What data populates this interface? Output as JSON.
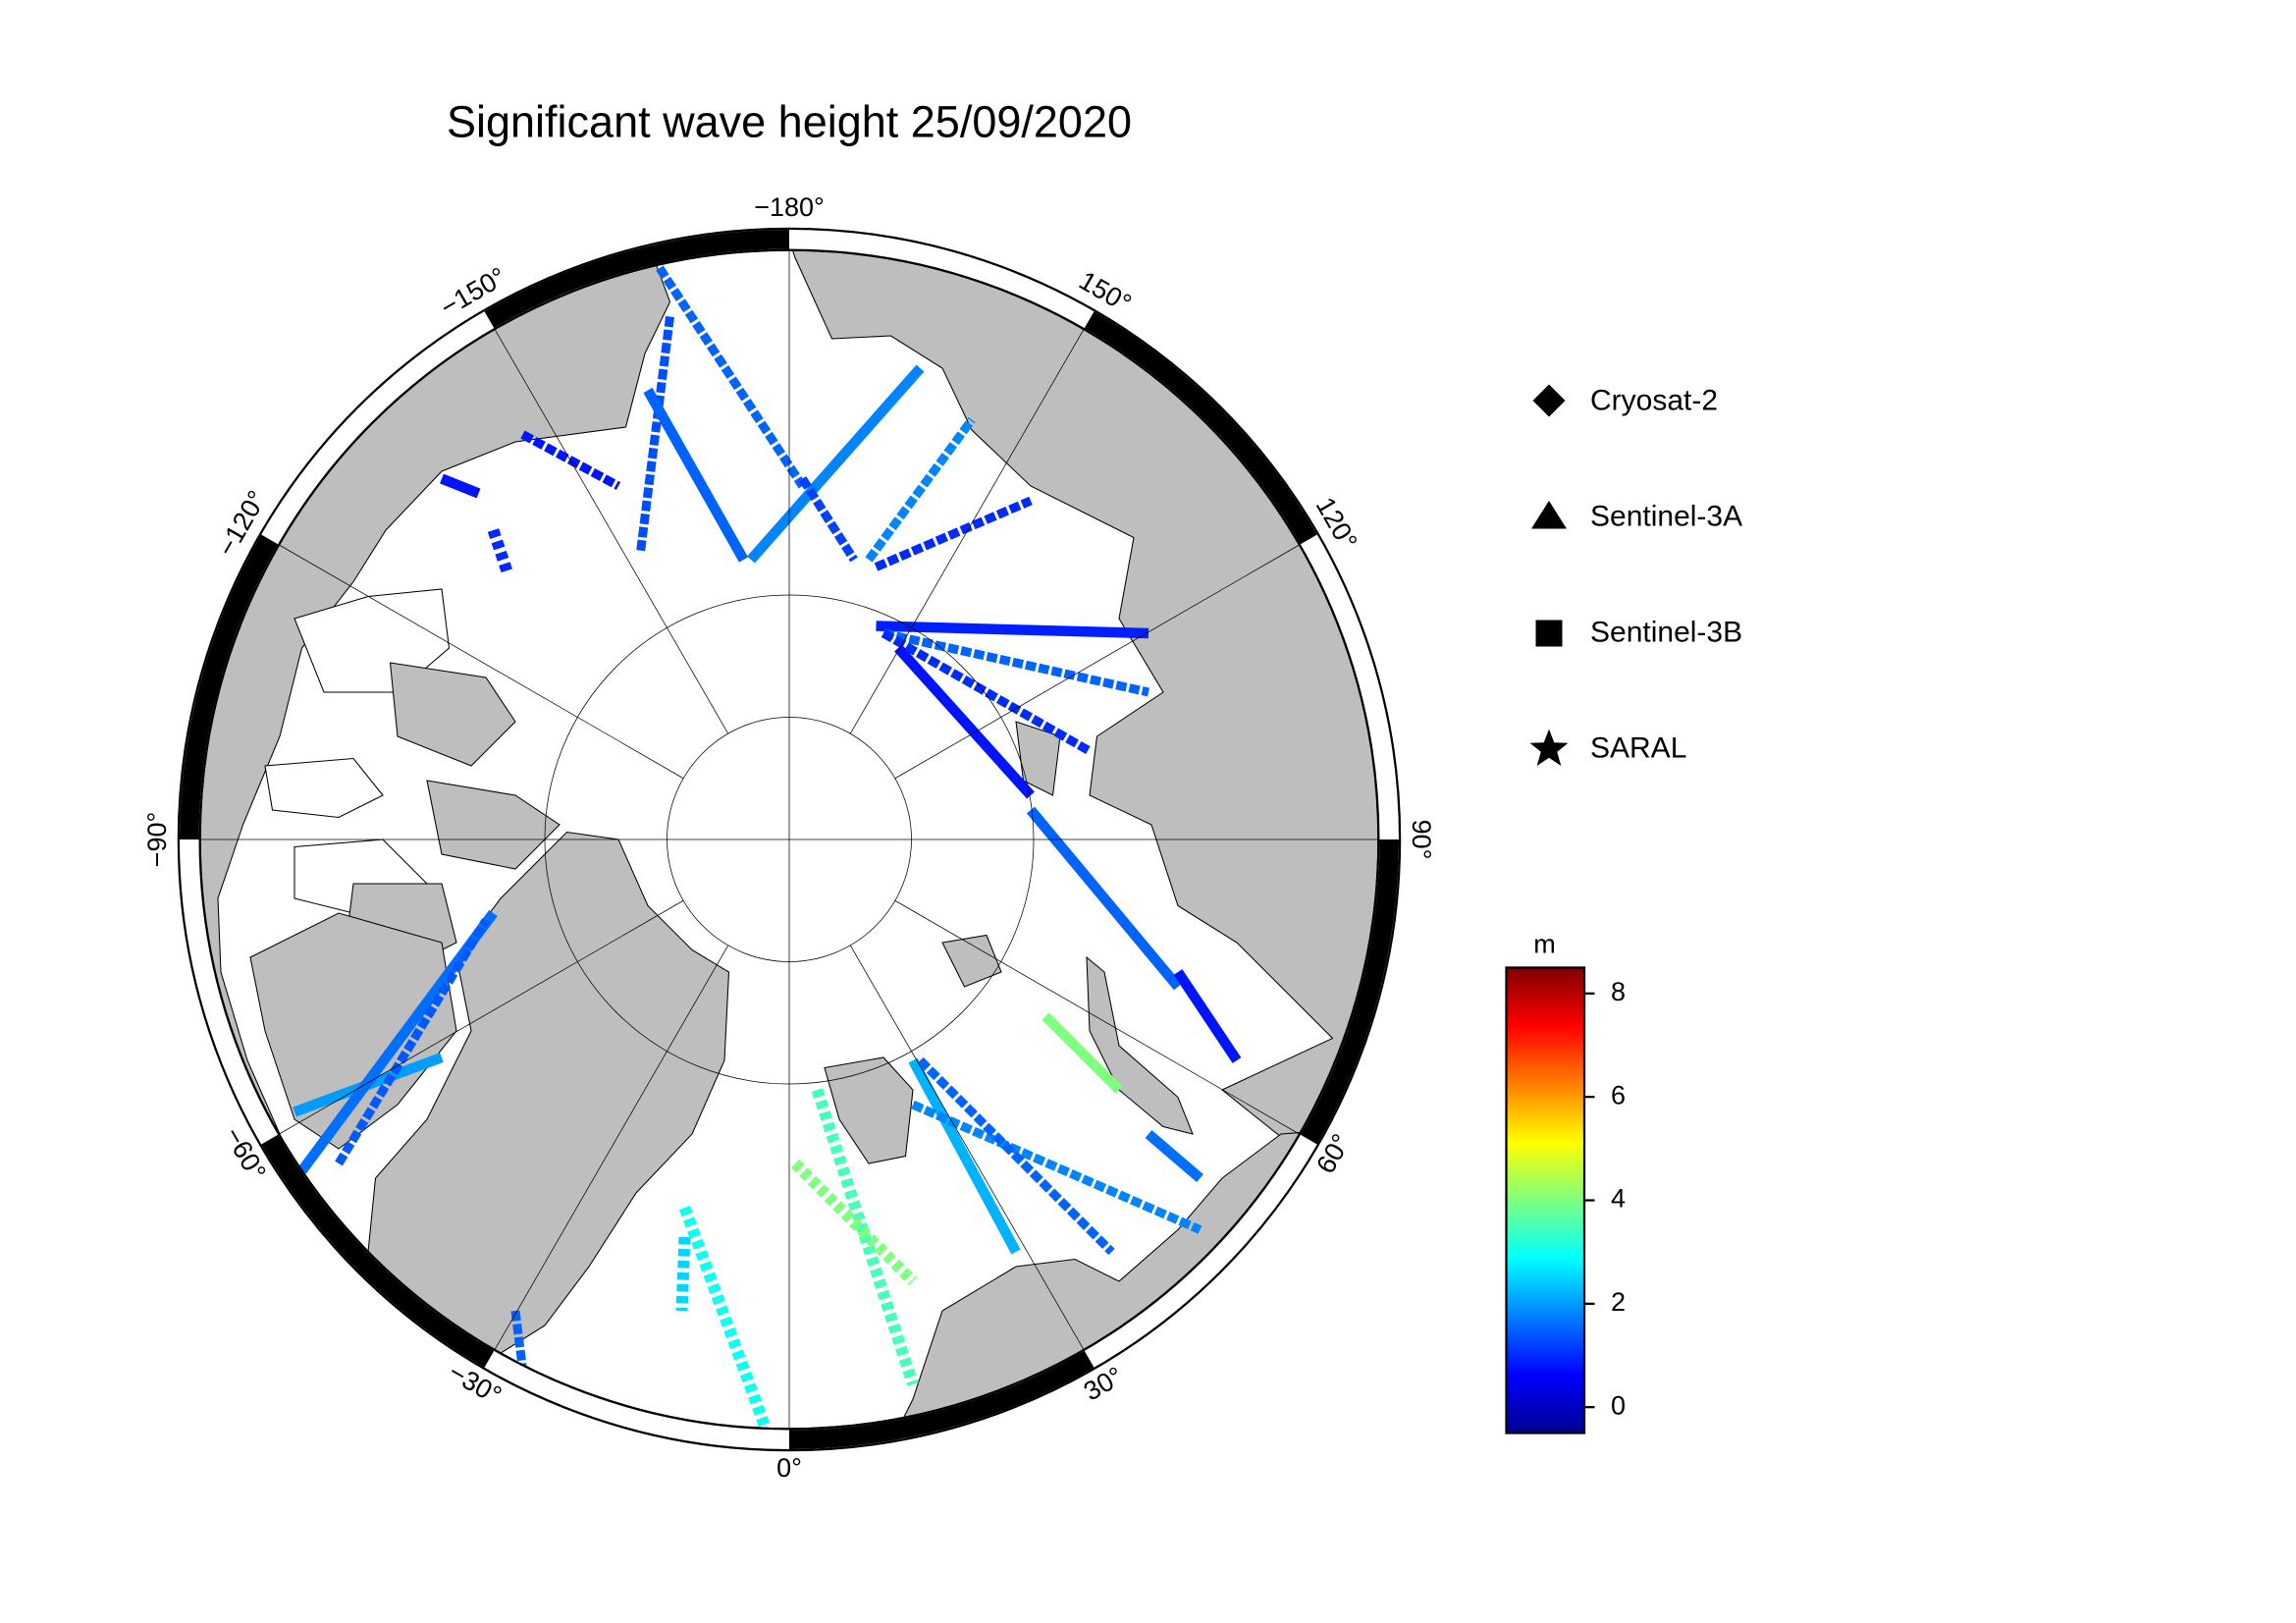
{
  "map": {
    "title": "Significant wave height 25/09/2020",
    "longitude_labels": [
      {
        "value": -180,
        "label": "−180°"
      },
      {
        "value": -150,
        "label": "−150°"
      },
      {
        "value": -120,
        "label": "−120°"
      },
      {
        "value": -90,
        "label": "−90°"
      },
      {
        "value": -60,
        "label": "−60°"
      },
      {
        "value": -30,
        "label": "−30°"
      },
      {
        "value": 0,
        "label": "0°"
      },
      {
        "value": 30,
        "label": "30°"
      },
      {
        "value": 60,
        "label": "60°"
      },
      {
        "value": 90,
        "label": "90°"
      },
      {
        "value": 120,
        "label": "120°"
      },
      {
        "value": 150,
        "label": "150°"
      }
    ],
    "legend": [
      {
        "label": "Cryosat-2"
      },
      {
        "label": "Sentinel-3A"
      },
      {
        "label": "Sentinel-3B"
      },
      {
        "label": "SARAL"
      }
    ],
    "colorbar": {
      "unit": "m",
      "range": [
        -0.5,
        8.5
      ],
      "ticks": [
        0,
        2,
        4,
        6,
        8
      ]
    },
    "tracks": [
      {
        "satellite": "Sentinel-3A",
        "swh": 1.5
      },
      {
        "satellite": "Sentinel-3A",
        "swh": 1.3
      },
      {
        "satellite": "Sentinel-3B",
        "swh": 1.5
      },
      {
        "satellite": "Sentinel-3B",
        "swh": 1.8
      },
      {
        "satellite": "Sentinel-3A",
        "swh": 1.2
      },
      {
        "satellite": "Sentinel-3A",
        "swh": 1.0
      },
      {
        "satellite": "Sentinel-3A",
        "swh": 1.8
      },
      {
        "satellite": "Sentinel-3A",
        "swh": 0.8
      },
      {
        "satellite": "Sentinel-3B",
        "swh": 0.8
      },
      {
        "satellite": "Sentinel-3B",
        "swh": 0.9
      },
      {
        "satellite": "Sentinel-3A",
        "swh": 1.5
      },
      {
        "satellite": "Sentinel-3A",
        "swh": 1.0
      },
      {
        "satellite": "Sentinel-3B",
        "swh": 0.8
      },
      {
        "satellite": "Sentinel-3B",
        "swh": 1.5
      },
      {
        "satellite": "Sentinel-3B",
        "swh": 0.8
      },
      {
        "satellite": "Sentinel-3B",
        "swh": 2.2
      },
      {
        "satellite": "Sentinel-3A",
        "swh": 1.8
      },
      {
        "satellite": "Sentinel-3A",
        "swh": 1.5
      },
      {
        "satellite": "Sentinel-3B",
        "swh": 4.0
      },
      {
        "satellite": "SARAL",
        "swh": 3.5
      },
      {
        "satellite": "SARAL",
        "swh": 4.0
      },
      {
        "satellite": "SARAL",
        "swh": 3.0
      },
      {
        "satellite": "SARAL",
        "swh": 2.5
      },
      {
        "satellite": "Sentinel-3A",
        "swh": 1.5
      },
      {
        "satellite": "Sentinel-3B",
        "swh": 2.0
      },
      {
        "satellite": "Sentinel-3B",
        "swh": 1.6
      },
      {
        "satellite": "Sentinel-3A",
        "swh": 1.4
      },
      {
        "satellite": "Sentinel-3B",
        "swh": 1.6
      },
      {
        "satellite": "SARAL",
        "swh": 1.0
      }
    ]
  }
}
